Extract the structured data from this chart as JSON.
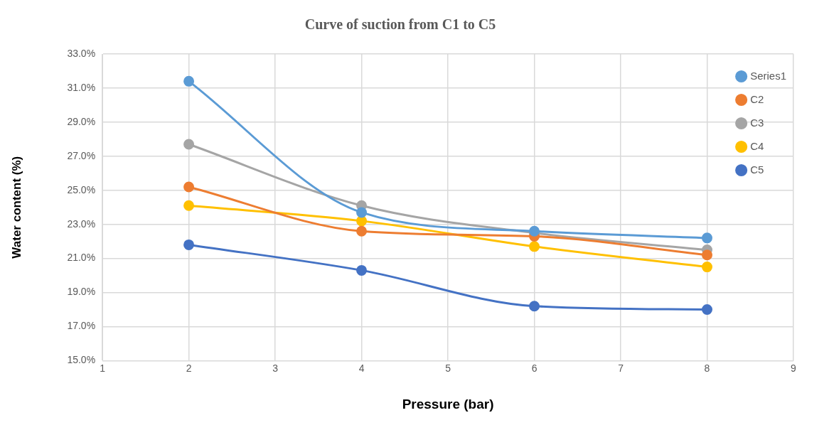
{
  "chart_data": {
    "type": "line",
    "title": "Curve of suction from C1 to C5",
    "xlabel": "Pressure (bar)",
    "ylabel": "Water content (%)",
    "x": [
      2,
      4,
      6,
      8
    ],
    "series": [
      {
        "name": "Series1",
        "color": "#5b9bd5",
        "values": [
          31.4,
          23.7,
          22.6,
          22.2
        ]
      },
      {
        "name": "C2",
        "color": "#ed7d31",
        "values": [
          25.2,
          22.6,
          22.3,
          21.2
        ]
      },
      {
        "name": "C3",
        "color": "#a5a5a5",
        "values": [
          27.7,
          24.1,
          22.5,
          21.5
        ]
      },
      {
        "name": "C4",
        "color": "#ffc000",
        "values": [
          24.1,
          23.2,
          21.7,
          20.5
        ]
      },
      {
        "name": "C5",
        "color": "#4472c4",
        "values": [
          21.8,
          20.3,
          18.2,
          18.0
        ]
      }
    ],
    "xlim": [
      1,
      9
    ],
    "xticks": [
      1,
      2,
      3,
      4,
      5,
      6,
      7,
      8,
      9
    ],
    "ylim": [
      15,
      33
    ],
    "yticks": [
      {
        "value": 15,
        "label": "15.0%"
      },
      {
        "value": 17,
        "label": "17.0%"
      },
      {
        "value": 19,
        "label": "19.0%"
      },
      {
        "value": 21,
        "label": "21.0%"
      },
      {
        "value": 23,
        "label": "23.0%"
      },
      {
        "value": 25,
        "label": "25.0%"
      },
      {
        "value": 27,
        "label": "27.0%"
      },
      {
        "value": 29,
        "label": "29.0%"
      },
      {
        "value": 31,
        "label": "31.0%"
      },
      {
        "value": 33,
        "label": "33.0%"
      }
    ],
    "grid": true,
    "legend": "top right",
    "marker": "circle",
    "line_style": "solid"
  }
}
